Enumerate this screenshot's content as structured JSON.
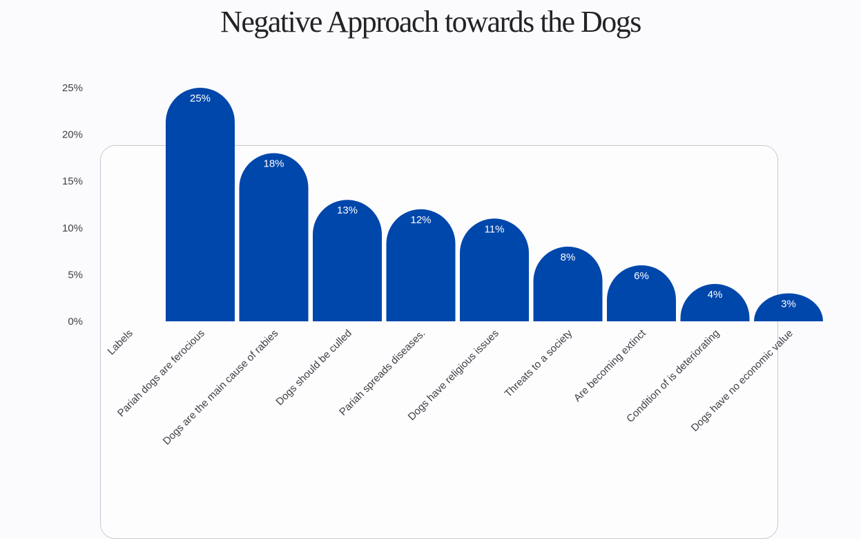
{
  "chart_data": {
    "type": "bar",
    "title": "Negative Approach towards the Dogs",
    "axis_label": "Labels",
    "categories": [
      "Pariah dogs are ferocious",
      "Dogs are the main cause of rabies",
      "Dogs should be culled",
      "Pariah spreads diseases.",
      "Dogs have religious issues",
      "Threats to a society",
      "Are becoming extinct",
      "Condition of is deteriorating",
      "Dogs have no economic value"
    ],
    "values": [
      25,
      18,
      13,
      12,
      11,
      8,
      6,
      4,
      3
    ],
    "data_labels": [
      "25%",
      "18%",
      "13%",
      "12%",
      "11%",
      "8%",
      "6%",
      "4%",
      "3%"
    ],
    "y_ticks": [
      "0%",
      "5%",
      "10%",
      "15%",
      "20%",
      "25%"
    ],
    "ylim": [
      0,
      25
    ],
    "grid": false,
    "legend": "none",
    "bar_color": "#0047ab"
  }
}
